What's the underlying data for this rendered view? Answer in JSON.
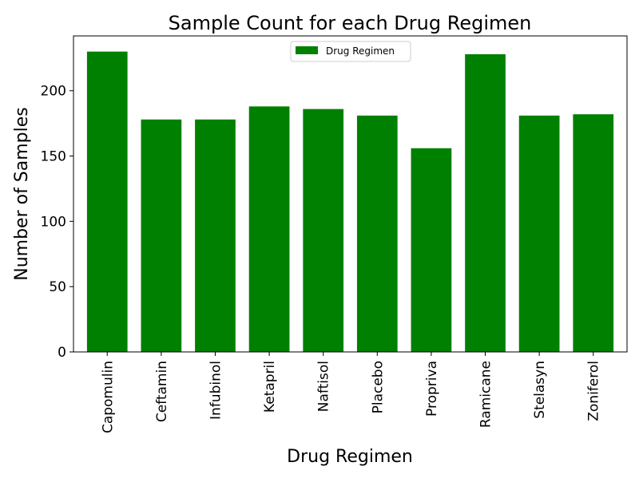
{
  "chart_data": {
    "type": "bar",
    "title": "Sample Count for each Drug Regimen",
    "xlabel": "Drug Regimen",
    "ylabel": "Number of Samples",
    "categories": [
      "Capomulin",
      "Ceftamin",
      "Infubinol",
      "Ketapril",
      "Naftisol",
      "Placebo",
      "Propriva",
      "Ramicane",
      "Stelasyn",
      "Zoniferol"
    ],
    "series": [
      {
        "name": "Drug Regimen",
        "values": [
          230,
          178,
          178,
          188,
          186,
          181,
          156,
          228,
          181,
          182
        ]
      }
    ],
    "ylim": [
      0,
      242
    ],
    "yticks": [
      0,
      50,
      100,
      150,
      200
    ],
    "grid": false,
    "legend": {
      "placement": "top-center",
      "entries": [
        "Drug Regimen"
      ]
    },
    "colors": {
      "bar": "#008000",
      "axis": "#000000",
      "legend_border": "#cccccc"
    }
  }
}
